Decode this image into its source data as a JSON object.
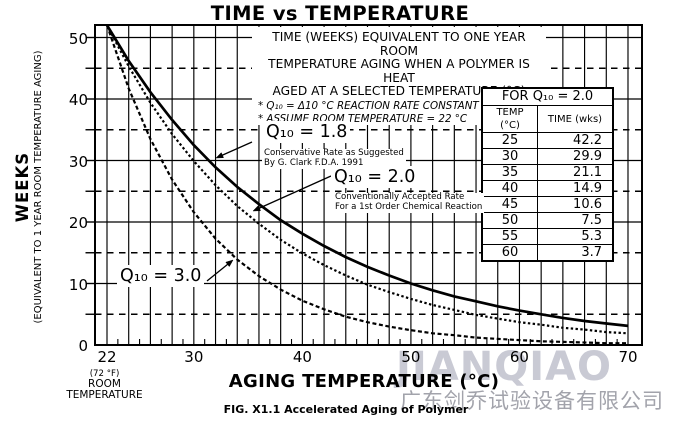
{
  "title": "TIME vs TEMPERATURE",
  "axes": {
    "y_title": "WEEKS",
    "y_subtitle": "(EQUIVALENT TO 1 YEAR ROOM TEMPERATURE AGING)",
    "x_title": "AGING TEMPERATURE (°C)",
    "room_note": {
      "line1": "(72 °F)",
      "line2": "ROOM",
      "line3": "TEMPERATURE"
    }
  },
  "description": {
    "line1": "TIME (WEEKS) EQUIVALENT TO ONE YEAR ROOM",
    "line2": "TEMPERATURE AGING WHEN A POLYMER IS HEAT",
    "line3": "AGED AT A SELECTED TEMPERATURE (°C)",
    "note1": "* Q₁₀ = Δ10 °C REACTION RATE CONSTANT",
    "note2": "* ASSUME ROOM TEMPERATURE = 22 °C"
  },
  "labels": {
    "q18": {
      "text": "Q₁₀ = 1.8",
      "note1": "Conservative Rate as Suggested",
      "note2": "By G. Clark F.D.A. 1991"
    },
    "q20": {
      "text": "Q₁₀ = 2.0",
      "note1": "Conventionally Accepted Rate",
      "note2": "For a 1st Order Chemical Reaction"
    },
    "q30": {
      "text": "Q₁₀ = 3.0"
    }
  },
  "table": {
    "title": "FOR Q₁₀ = 2.0",
    "columns": [
      "TEMP (°C)",
      "TIME (wks)"
    ],
    "rows": [
      [
        "25",
        "42.2"
      ],
      [
        "30",
        "29.9"
      ],
      [
        "35",
        "21.1"
      ],
      [
        "40",
        "14.9"
      ],
      [
        "45",
        "10.6"
      ],
      [
        "50",
        "7.5"
      ],
      [
        "55",
        "5.3"
      ],
      [
        "60",
        "3.7"
      ]
    ]
  },
  "caption": "FIG. X1.1 Accelerated Aging of Polymer",
  "watermark": {
    "name": "JIANQIAO",
    "company": "广东剑乔试验设备有限公司"
  },
  "colors": {
    "ink": "#000000",
    "watermark_name": "#c9cad4",
    "watermark_company": "#a2a3ab"
  },
  "chart_data": {
    "type": "line",
    "title": "TIME vs TEMPERATURE",
    "xlabel": "AGING TEMPERATURE (°C)",
    "ylabel": "WEEKS (EQUIVALENT TO 1 YEAR ROOM TEMPERATURE AGING)",
    "xlim": [
      21,
      71.3
    ],
    "ylim": [
      0,
      52
    ],
    "x_tick_labels": [
      22,
      30,
      40,
      50,
      60,
      70
    ],
    "y_tick_labels": [
      50,
      40,
      30,
      20,
      10,
      0
    ],
    "grid": {
      "x_major_step": 2,
      "x_minor_tick_step": 1,
      "y_solid_step": 10,
      "y_dashed_step": 5
    },
    "x": [
      22,
      24,
      26,
      28,
      30,
      32,
      34,
      36,
      38,
      40,
      42,
      44,
      46,
      48,
      50,
      52,
      54,
      56,
      58,
      60,
      62,
      64,
      66,
      68,
      70
    ],
    "series": [
      {
        "name": "Q10 = 1.8",
        "style": "solid",
        "values": [
          52,
          46.2,
          41.1,
          36.6,
          32.5,
          28.9,
          25.7,
          22.9,
          20.3,
          18.1,
          16.1,
          14.3,
          12.7,
          11.3,
          10.0,
          8.9,
          7.9,
          7.1,
          6.3,
          5.6,
          5.0,
          4.4,
          3.9,
          3.5,
          3.1
        ]
      },
      {
        "name": "Q10 = 2.0",
        "style": "dotted",
        "values": [
          52,
          45.3,
          39.4,
          34.3,
          29.9,
          26.0,
          22.6,
          19.7,
          17.1,
          14.9,
          13.0,
          11.3,
          9.8,
          8.6,
          7.5,
          6.5,
          5.7,
          4.9,
          4.3,
          3.7,
          3.3,
          2.8,
          2.5,
          2.1,
          1.9
        ]
      },
      {
        "name": "Q10 = 3.0",
        "style": "dashed",
        "values": [
          52,
          41.7,
          33.5,
          26.9,
          21.6,
          17.3,
          13.9,
          11.2,
          9.0,
          7.2,
          5.8,
          4.6,
          3.7,
          3.0,
          2.4,
          1.9,
          1.6,
          1.2,
          1.0,
          0.8,
          0.6,
          0.5,
          0.4,
          0.3,
          0.3
        ]
      }
    ]
  }
}
